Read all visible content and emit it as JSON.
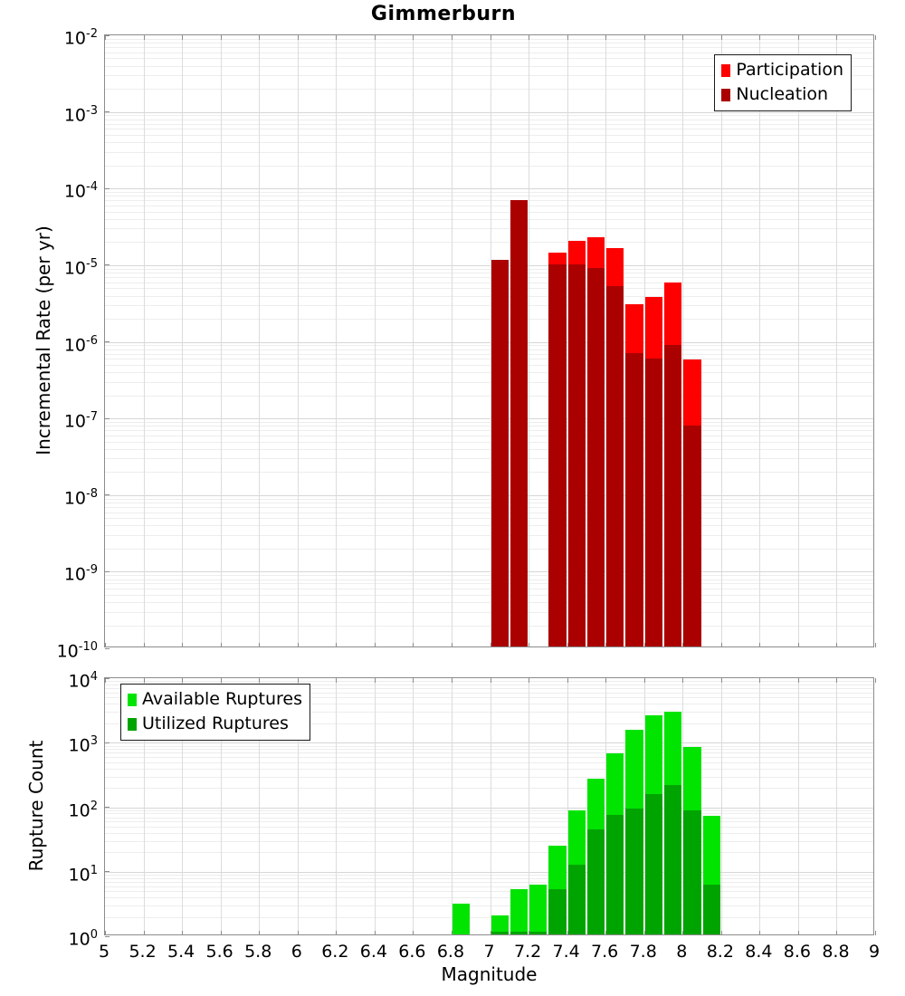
{
  "title": "Gimmerburn",
  "x_axis": {
    "label": "Magnitude",
    "min": 5,
    "max": 9,
    "tick_labels": [
      "5",
      "5.2",
      "5.4",
      "5.6",
      "5.8",
      "6",
      "6.2",
      "6.4",
      "6.6",
      "6.8",
      "7",
      "7.2",
      "7.4",
      "7.6",
      "7.8",
      "8",
      "8.2",
      "8.4",
      "8.6",
      "8.8",
      "9"
    ]
  },
  "y_tick_base": "10",
  "chart_data": [
    {
      "type": "bar",
      "name": "incremental-rate-mfd",
      "title": "Gimmerburn",
      "ylabel": "Incremental Rate (per yr)",
      "y_scale": "log",
      "ylim": [
        1e-10,
        0.01
      ],
      "ytick_exponents": [
        -2,
        -3,
        -4,
        -5,
        -6,
        -7,
        -8,
        -9,
        -10
      ],
      "grid": "on",
      "legend_position": "top-right",
      "bin_width": 0.1,
      "series": [
        {
          "key": "participation",
          "label": "Participation",
          "color": "#ff0000"
        },
        {
          "key": "nucleation",
          "label": "Nucleation",
          "color": "#aa0000"
        }
      ],
      "bins": [
        {
          "m": 7.0,
          "values": [
            1.1e-05,
            1.1e-05
          ]
        },
        {
          "m": 7.1,
          "values": [
            6.7e-05,
            6.7e-05
          ]
        },
        {
          "m": 7.3,
          "values": [
            1.4e-05,
            9.6e-06
          ]
        },
        {
          "m": 7.4,
          "values": [
            1.95e-05,
            9.6e-06
          ]
        },
        {
          "m": 7.5,
          "values": [
            2.2e-05,
            8.6e-06
          ]
        },
        {
          "m": 7.6,
          "values": [
            1.6e-05,
            5.1e-06
          ]
        },
        {
          "m": 7.7,
          "values": [
            2.9e-06,
            6.8e-07
          ]
        },
        {
          "m": 7.8,
          "values": [
            3.6e-06,
            5.8e-07
          ]
        },
        {
          "m": 7.9,
          "values": [
            5.6e-06,
            8.5e-07
          ]
        },
        {
          "m": 8.0,
          "values": [
            5.6e-07,
            7.7e-08
          ]
        }
      ]
    },
    {
      "type": "bar",
      "name": "rupture-count",
      "ylabel": "Rupture Count",
      "y_scale": "log",
      "ylim": [
        1,
        10000.0
      ],
      "ytick_exponents": [
        4,
        3,
        2,
        1,
        0
      ],
      "grid": "on",
      "legend_position": "top-left",
      "bin_width": 0.1,
      "series": [
        {
          "key": "available",
          "label": "Available Ruptures",
          "color": "#00e400"
        },
        {
          "key": "utilized",
          "label": "Utilized Ruptures",
          "color": "#00a400"
        }
      ],
      "bins": [
        {
          "m": 6.8,
          "values": [
            3,
            0
          ]
        },
        {
          "m": 7.0,
          "values": [
            2,
            1
          ]
        },
        {
          "m": 7.1,
          "values": [
            5,
            1
          ]
        },
        {
          "m": 7.2,
          "values": [
            6,
            1
          ]
        },
        {
          "m": 7.3,
          "values": [
            24,
            5
          ]
        },
        {
          "m": 7.4,
          "values": [
            85,
            12
          ]
        },
        {
          "m": 7.5,
          "values": [
            260,
            42
          ]
        },
        {
          "m": 7.6,
          "values": [
            650,
            72
          ]
        },
        {
          "m": 7.7,
          "values": [
            1500,
            90
          ]
        },
        {
          "m": 7.8,
          "values": [
            2500,
            150
          ]
        },
        {
          "m": 7.9,
          "values": [
            2800,
            210
          ]
        },
        {
          "m": 8.0,
          "values": [
            800,
            85
          ]
        },
        {
          "m": 8.1,
          "values": [
            70,
            6
          ]
        }
      ]
    }
  ]
}
